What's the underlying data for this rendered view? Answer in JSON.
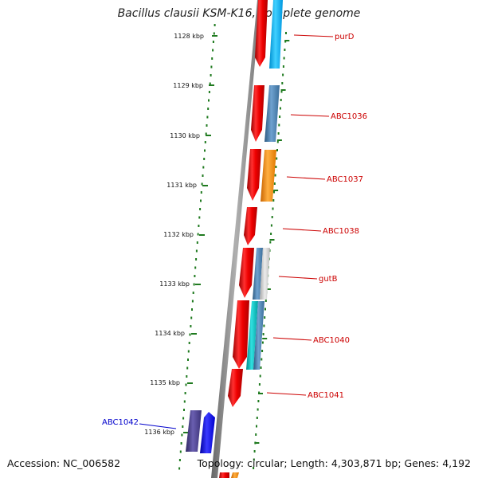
{
  "title": "Bacillus clausii KSM-K16, complete genome",
  "footer": {
    "accession": "Accession: NC_006582",
    "summary": "Topology: circular; Length: 4,303,871 bp; Genes: 4,192"
  },
  "ticks": [
    {
      "label": "1128 kbp"
    },
    {
      "label": "1129 kbp"
    },
    {
      "label": "1130 kbp"
    },
    {
      "label": "1131 kbp"
    },
    {
      "label": "1132 kbp"
    },
    {
      "label": "1133 kbp"
    },
    {
      "label": "1134 kbp"
    },
    {
      "label": "1135 kbp"
    },
    {
      "label": "1136 kbp"
    }
  ],
  "gene_labels": [
    {
      "text": "purD",
      "color": "#cc0000"
    },
    {
      "text": "ABC1036",
      "color": "#cc0000"
    },
    {
      "text": "ABC1037",
      "color": "#cc0000"
    },
    {
      "text": "ABC1038",
      "color": "#cc0000"
    },
    {
      "text": "gutB",
      "color": "#cc0000"
    },
    {
      "text": "ABC1040",
      "color": "#cc0000"
    },
    {
      "text": "ABC1041",
      "color": "#cc0000"
    },
    {
      "text": "ABC1042",
      "color": "#0000cc"
    }
  ],
  "colors": {
    "cds_red": "#ee0000",
    "steelblue": "#4682b4",
    "skyblue": "#00b4ff",
    "orange": "#ff8c00",
    "lightgray": "#c8c8c8",
    "teal": "#00b4b4",
    "purple": "#483d8b",
    "blue": "#0000ee",
    "tick_green": "#1f7a1f",
    "backbone": "#888888"
  }
}
